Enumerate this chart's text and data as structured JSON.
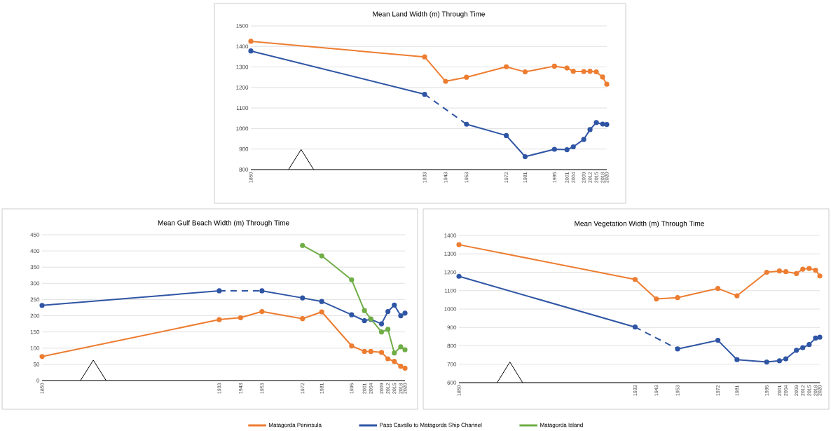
{
  "chart_data": [
    {
      "type": "line",
      "title": "Mean Land Width (m) Through Time",
      "x": [
        1850,
        1933,
        1943,
        1953,
        1972,
        1981,
        1995,
        2001,
        2004,
        2009,
        2012,
        2015,
        2018,
        2020
      ],
      "xlim": [
        1850,
        2020
      ],
      "xticks": [
        1850,
        1933,
        1943,
        1953,
        1972,
        1981,
        1995,
        2001,
        2004,
        2009,
        2012,
        2015,
        2018,
        2020
      ],
      "ylim": [
        800,
        1500
      ],
      "yticks": [
        800,
        900,
        1000,
        1100,
        1200,
        1300,
        1400,
        1500
      ],
      "grid": "y",
      "marker": "circle",
      "series": [
        {
          "color": "#ed7d31",
          "values": [
            1425,
            1349,
            1230,
            1250,
            1301,
            1276,
            1304,
            1295,
            1279,
            1278,
            1279,
            1276,
            1251,
            1216
          ]
        },
        {
          "color": "#2f55a4",
          "values": [
            1378,
            1167,
            null,
            1021,
            966,
            863,
            899,
            897,
            911,
            947,
            995,
            1029,
            1022,
            1020
          ]
        }
      ]
    },
    {
      "type": "line",
      "title": "Mean Gulf Beach Width (m) Through Time",
      "x": [
        1850,
        1933,
        1943,
        1953,
        1972,
        1981,
        1995,
        2001,
        2004,
        2009,
        2012,
        2015,
        2018,
        2020
      ],
      "xlim": [
        1850,
        2020
      ],
      "xticks": [
        1850,
        1933,
        1943,
        1953,
        1972,
        1981,
        1995,
        2001,
        2004,
        2009,
        2012,
        2015,
        2018,
        2020
      ],
      "ylim": [
        0,
        450
      ],
      "yticks": [
        0,
        50,
        100,
        150,
        200,
        250,
        300,
        350,
        400,
        450
      ],
      "grid": "y",
      "marker": "circle",
      "legend": "bottom",
      "series": [
        {
          "name": "Matagorda Peninsula",
          "color": "#ed7d31",
          "values": [
            74,
            188,
            194,
            213,
            191,
            212,
            107,
            90,
            90,
            87,
            67,
            59,
            44,
            38
          ]
        },
        {
          "name": "Pass Cavallo to Matagorda Ship Channel",
          "color": "#2f55a4",
          "values": [
            232,
            277,
            null,
            277,
            255,
            244,
            203,
            185,
            189,
            175,
            213,
            233,
            200,
            208
          ]
        },
        {
          "name": "Matagorda Island",
          "color": "#70ad47",
          "values": [
            null,
            null,
            null,
            null,
            417,
            385,
            311,
            216,
            190,
            150,
            158,
            85,
            104,
            95
          ]
        }
      ]
    },
    {
      "type": "line",
      "title": "Mean Vegetation Width (m) Through Time",
      "x": [
        1850,
        1933,
        1943,
        1953,
        1972,
        1981,
        1995,
        2001,
        2004,
        2009,
        2012,
        2015,
        2018,
        2020
      ],
      "xlim": [
        1850,
        2020
      ],
      "xticks": [
        1850,
        1933,
        1943,
        1953,
        1972,
        1981,
        1995,
        2001,
        2004,
        2009,
        2012,
        2015,
        2018,
        2020
      ],
      "ylim": [
        600,
        1400
      ],
      "yticks": [
        600,
        700,
        800,
        900,
        1000,
        1100,
        1200,
        1300,
        1400
      ],
      "grid": "y",
      "marker": "circle",
      "series": [
        {
          "color": "#ed7d31",
          "values": [
            1350,
            1161,
            1055,
            1062,
            1112,
            1072,
            1200,
            1207,
            1203,
            1193,
            1217,
            1221,
            1211,
            1180
          ]
        },
        {
          "color": "#2f55a4",
          "values": [
            1178,
            902,
            null,
            783,
            830,
            725,
            712,
            719,
            729,
            776,
            790,
            807,
            842,
            847
          ]
        }
      ]
    }
  ]
}
